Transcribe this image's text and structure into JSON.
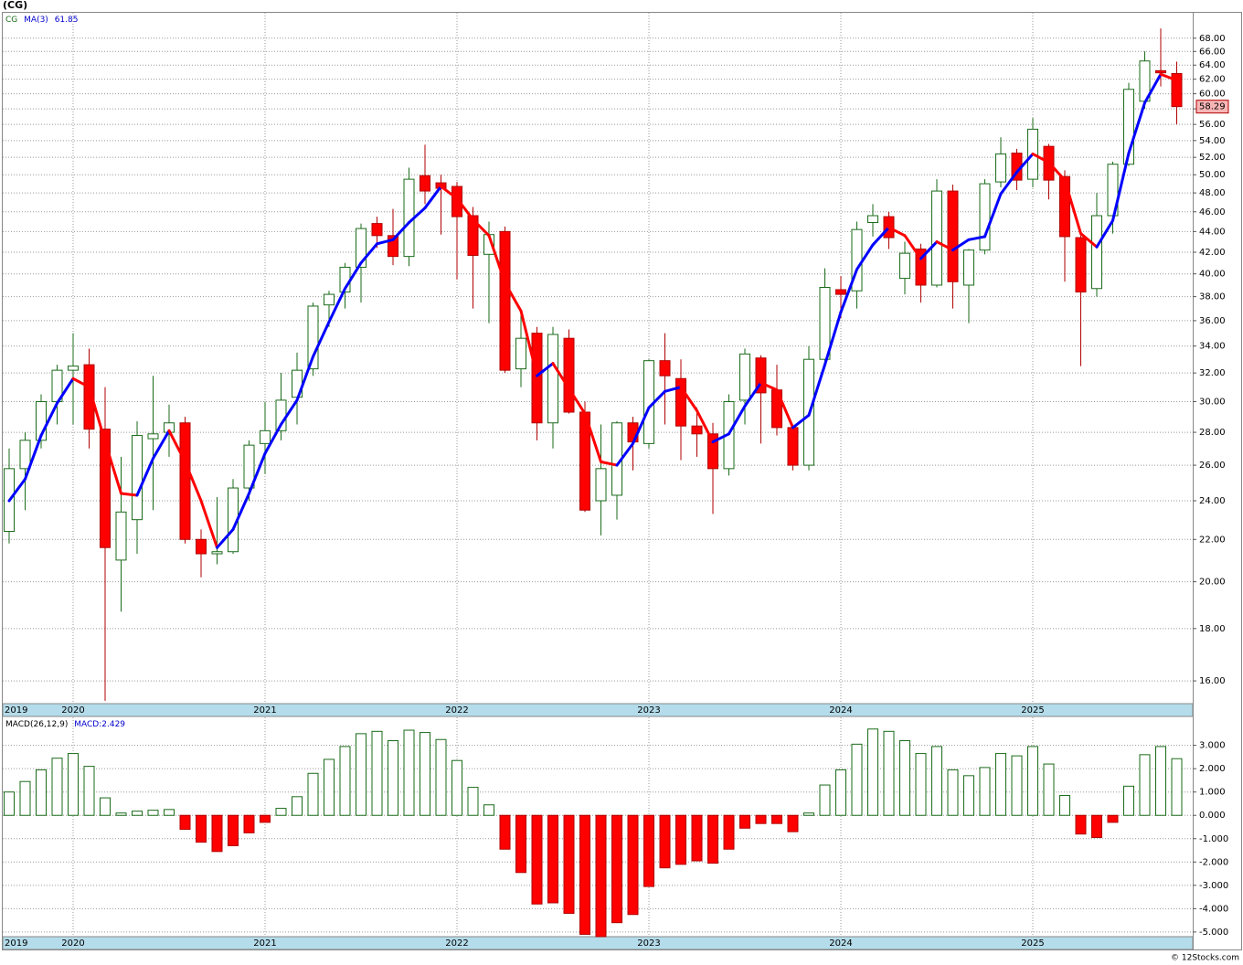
{
  "footer": "© 12Stocks.com",
  "chart_data": [
    {
      "type": "candlestick",
      "title": "(CG)",
      "symbol": "CG",
      "log_scale": true,
      "grid": true,
      "categories": [
        "2019",
        null,
        null,
        null,
        "2020",
        null,
        null,
        null,
        null,
        null,
        null,
        null,
        null,
        null,
        null,
        null,
        "2021",
        null,
        null,
        null,
        null,
        null,
        null,
        null,
        null,
        null,
        null,
        null,
        "2022",
        null,
        null,
        null,
        null,
        null,
        null,
        null,
        null,
        null,
        null,
        null,
        "2023",
        null,
        null,
        null,
        null,
        null,
        null,
        null,
        null,
        null,
        null,
        null,
        "2024",
        null,
        null,
        null,
        null,
        null,
        null,
        null,
        null,
        null,
        null,
        null,
        "2025",
        null,
        null,
        null,
        null,
        null,
        null,
        null,
        null,
        null
      ],
      "open": [
        22.4,
        25.8,
        27.5,
        30,
        32.2,
        32.6,
        28.2,
        21,
        23,
        27.6,
        28,
        28.6,
        22,
        21.3,
        21.4,
        24.7,
        27.3,
        28.1,
        30.3,
        32.3,
        37.3,
        38.4,
        40.6,
        44.8,
        43.6,
        41.6,
        49.9,
        49.1,
        48.7,
        45.6,
        41.8,
        44,
        32.3,
        35,
        28.6,
        34.6,
        29.3,
        24,
        24.3,
        28.6,
        27.3,
        32.9,
        31.6,
        28.4,
        27.9,
        25.8,
        30.1,
        33.1,
        30.8,
        28.3,
        26,
        33,
        38.6,
        38.5,
        44.9,
        45.5,
        39.6,
        42.3,
        39,
        48.2,
        39,
        42.2,
        49.2,
        52.5,
        49.5,
        53.3,
        49.8,
        43.4,
        38.7,
        45.6,
        51.2,
        59,
        63.2,
        62.8
      ],
      "high": [
        27,
        28,
        30.5,
        32.6,
        35,
        33.8,
        31,
        26.5,
        28.7,
        31.8,
        29.8,
        29,
        22.5,
        24.2,
        25.2,
        27.5,
        30,
        32,
        33.5,
        37.5,
        38.5,
        41,
        44.8,
        45.5,
        46.3,
        50.8,
        53.5,
        50,
        49.2,
        46.5,
        45,
        44.5,
        36.5,
        35.5,
        35.5,
        35.3,
        30,
        28.5,
        28.7,
        29,
        33,
        35,
        33,
        29.6,
        28.6,
        30.5,
        33.8,
        33.3,
        32.6,
        28.5,
        34,
        40.5,
        39.8,
        45,
        46.8,
        46,
        43,
        42.8,
        49.5,
        48.9,
        42.3,
        49.5,
        54.4,
        53,
        56.8,
        53.6,
        50.5,
        44,
        48,
        51.5,
        61.5,
        66,
        69.5,
        64.5
      ],
      "low": [
        21.8,
        23.5,
        27,
        28.5,
        28.5,
        27,
        15.3,
        18.7,
        21.3,
        23.5,
        26.5,
        21.8,
        20.2,
        20.8,
        21.3,
        24,
        25.5,
        27.5,
        28.5,
        31.8,
        35.5,
        37,
        37.5,
        42.4,
        40.8,
        40.7,
        46.8,
        43.7,
        39.5,
        37,
        35.8,
        32,
        31,
        27.5,
        27,
        29.2,
        23.4,
        22.2,
        23,
        25.7,
        27,
        28.5,
        26.3,
        26.5,
        23.3,
        25.4,
        28.5,
        27.3,
        27.8,
        25.7,
        25.7,
        32.7,
        36.2,
        37,
        43.5,
        42.3,
        38.2,
        37.5,
        38.8,
        37,
        35.8,
        41.8,
        48.6,
        48.3,
        48.6,
        47.3,
        39.3,
        32.5,
        38,
        43.8,
        51,
        58,
        61,
        56
      ],
      "close": [
        25.8,
        27.5,
        30,
        32.2,
        32.5,
        28.2,
        21.6,
        23.4,
        27.8,
        27.9,
        28.6,
        22,
        21.3,
        21.4,
        24.7,
        27.2,
        28.1,
        30.1,
        32.2,
        37.2,
        38.2,
        40.6,
        44.3,
        43.6,
        41.6,
        49.5,
        48.2,
        48.5,
        45.5,
        41.7,
        43.7,
        32.2,
        34.6,
        28.6,
        34.9,
        29.3,
        23.5,
        25.8,
        28.6,
        27.4,
        32.9,
        31.8,
        28.4,
        27.9,
        25.8,
        30,
        33.4,
        30.6,
        28.3,
        26,
        33,
        38.8,
        38.2,
        44.2,
        45.6,
        43.4,
        41.9,
        39,
        48.2,
        39.3,
        42.2,
        49,
        52.4,
        49.4,
        55.4,
        49.4,
        43.5,
        38.4,
        45.6,
        51.2,
        60.6,
        64.6,
        62.9,
        58.29
      ],
      "up_color": "#ffffff",
      "up_edge": "#1a6b1a",
      "down_color": "#ff0000",
      "down_edge": "#b00000",
      "ma": {
        "name": "MA(3)",
        "rising_color": "#0000ff",
        "falling_color": "#ff0000",
        "values": [
          24,
          25.2,
          27.8,
          29.9,
          31.6,
          31,
          27.4,
          24.4,
          24.3,
          26.4,
          28.1,
          26.2,
          24,
          21.6,
          22.5,
          24.4,
          26.7,
          28.5,
          30.1,
          33.2,
          35.9,
          38.7,
          41,
          42.8,
          43.2,
          44.9,
          46.4,
          48.7,
          47.4,
          45.2,
          43.6,
          39.2,
          36.8,
          31.8,
          32.7,
          30.9,
          29.2,
          26.2,
          26,
          27.3,
          29.6,
          30.7,
          31,
          29.4,
          27.4,
          27.9,
          29.7,
          31.3,
          30.8,
          28.3,
          29.1,
          32.6,
          36.7,
          40.4,
          42.7,
          44.4,
          43.6,
          41.4,
          43,
          42.2,
          43.2,
          43.5,
          47.9,
          50.3,
          52.4,
          51.4,
          49.4,
          43.8,
          42.5,
          45.1,
          52.5,
          58.8,
          62.7,
          61.85
        ]
      },
      "ylim": [
        15.2,
        72
      ],
      "yticks": [
        {
          "value": 16,
          "label": "16.00"
        },
        {
          "value": 18,
          "label": "18.00"
        },
        {
          "value": 20,
          "label": "20.00"
        },
        {
          "value": 22,
          "label": "22.00"
        },
        {
          "value": 24,
          "label": "24.00"
        },
        {
          "value": 26,
          "label": "26.00"
        },
        {
          "value": 28,
          "label": "28.00"
        },
        {
          "value": 30,
          "label": "30.00"
        },
        {
          "value": 32,
          "label": "32.00"
        },
        {
          "value": 34,
          "label": "34.00"
        },
        {
          "value": 36,
          "label": "36.00"
        },
        {
          "value": 38,
          "label": "38.00"
        },
        {
          "value": 40,
          "label": "40.00"
        },
        {
          "value": 42,
          "label": "42.00"
        },
        {
          "value": 44,
          "label": "44.00"
        },
        {
          "value": 46,
          "label": "46.00"
        },
        {
          "value": 48,
          "label": "48.00"
        },
        {
          "value": 50,
          "label": "50.00"
        },
        {
          "value": 52,
          "label": "52.00"
        },
        {
          "value": 54,
          "label": "54.00"
        },
        {
          "value": 56,
          "label": "56.00"
        },
        {
          "value": 58,
          "label": "58.00"
        },
        {
          "value": 60,
          "label": "60.00"
        },
        {
          "value": 62,
          "label": "62.00"
        },
        {
          "value": 64,
          "label": "64.00"
        },
        {
          "value": 66,
          "label": "66.00"
        },
        {
          "value": 68,
          "label": "68.00"
        }
      ]
    },
    {
      "type": "bar",
      "title": "MACD(26,12,9)",
      "legend_label": "MACD:",
      "grid": true,
      "categories": [
        "2019",
        null,
        null,
        null,
        "2020",
        null,
        null,
        null,
        null,
        null,
        null,
        null,
        null,
        null,
        null,
        null,
        "2021",
        null,
        null,
        null,
        null,
        null,
        null,
        null,
        null,
        null,
        null,
        null,
        "2022",
        null,
        null,
        null,
        null,
        null,
        null,
        null,
        null,
        null,
        null,
        null,
        "2023",
        null,
        null,
        null,
        null,
        null,
        null,
        null,
        null,
        null,
        null,
        null,
        "2024",
        null,
        null,
        null,
        null,
        null,
        null,
        null,
        null,
        null,
        null,
        null,
        "2025",
        null,
        null,
        null,
        null,
        null,
        null,
        null,
        null,
        null
      ],
      "values": [
        1,
        1.45,
        1.95,
        2.45,
        2.65,
        2.1,
        0.75,
        0.1,
        0.18,
        0.22,
        0.25,
        -0.6,
        -1.15,
        -1.55,
        -1.3,
        -0.75,
        -0.3,
        0.3,
        0.8,
        1.8,
        2.4,
        2.95,
        3.5,
        3.6,
        3.2,
        3.65,
        3.55,
        3.25,
        2.35,
        1.2,
        0.45,
        -1.45,
        -2.45,
        -3.8,
        -3.75,
        -4.2,
        -5.1,
        -5.2,
        -4.6,
        -4.25,
        -3.05,
        -2.25,
        -2.1,
        -1.95,
        -2.05,
        -1.45,
        -0.55,
        -0.35,
        -0.35,
        -0.7,
        0.1,
        1.3,
        1.95,
        3.05,
        3.7,
        3.6,
        3.2,
        2.65,
        2.95,
        1.95,
        1.7,
        2.05,
        2.65,
        2.55,
        2.95,
        2.2,
        0.85,
        -0.8,
        -0.95,
        -0.3,
        1.25,
        2.6,
        2.95,
        2.429
      ],
      "positive_color": "#ffffff",
      "positive_edge": "#1a6b1a",
      "negative_color": "#ff0000",
      "negative_edge": "#b00000",
      "ylim": [
        -5.2,
        4.2
      ],
      "yticks": [
        {
          "value": 3,
          "label": "3.000"
        },
        {
          "value": 2,
          "label": "2.000"
        },
        {
          "value": 1,
          "label": "1.000"
        },
        {
          "value": 0,
          "label": "0.000"
        },
        {
          "value": -1,
          "label": "-1.000"
        },
        {
          "value": -2,
          "label": "-2.000"
        },
        {
          "value": -3,
          "label": "-3.000"
        },
        {
          "value": -4,
          "label": "-4.000"
        },
        {
          "value": -5,
          "label": "-5.000"
        }
      ]
    }
  ]
}
